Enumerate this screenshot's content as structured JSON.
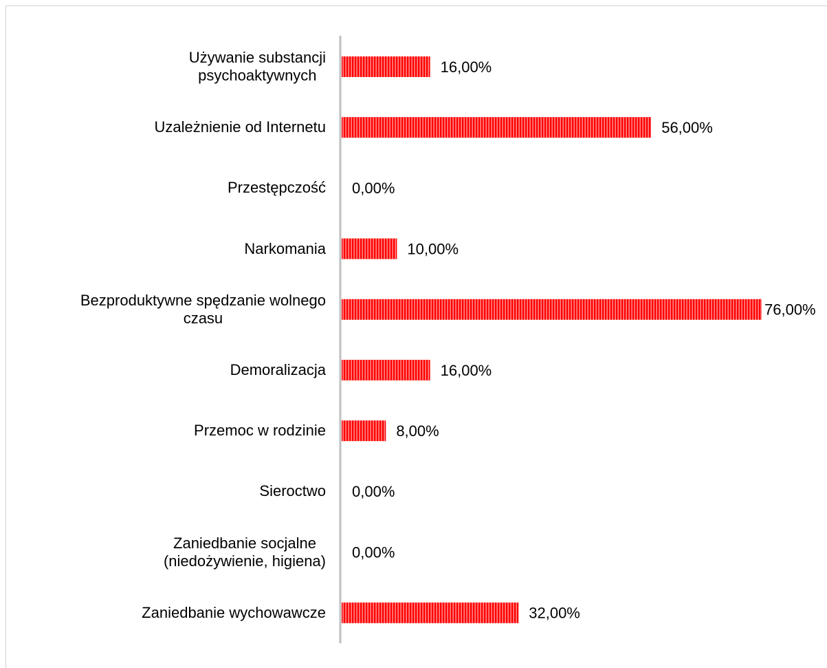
{
  "chart_data": {
    "type": "bar",
    "orientation": "horizontal",
    "categories": [
      "Używanie substancji\npsychoaktywnych",
      "Uzależnienie od Internetu",
      "Przestępczość",
      "Narkomania",
      "Bezproduktywne spędzanie wolnego\nczasu",
      "Demoralizacja",
      "Przemoc w rodzinie",
      "Sieroctwo",
      "Zaniedbanie socjalne\n(niedożywienie, higiena)",
      "Zaniedbanie wychowawcze"
    ],
    "values": [
      16,
      56,
      0,
      10,
      76,
      16,
      8,
      0,
      0,
      32
    ],
    "value_labels": [
      "16,00%",
      "56,00%",
      "0,00%",
      "10,00%",
      "76,00%",
      "16,00%",
      "8,00%",
      "0,00%",
      "0,00%",
      "32,00%"
    ],
    "color": "#ff0000",
    "xlim": [
      0,
      76
    ]
  }
}
